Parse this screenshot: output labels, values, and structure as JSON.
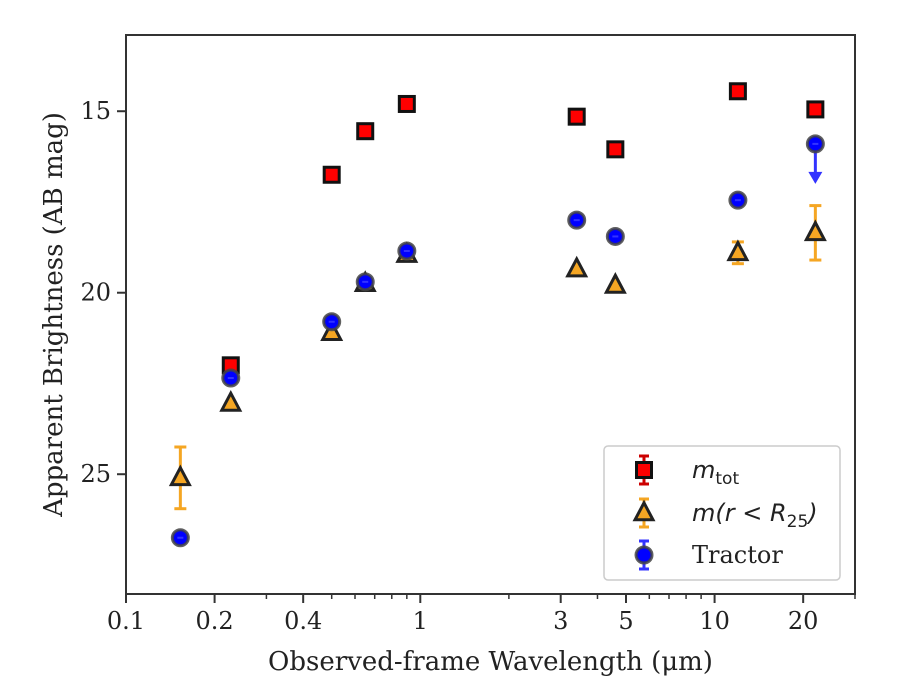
{
  "chart_data": {
    "type": "scatter",
    "title": "",
    "xlabel": "Observed-frame Wavelength (μm)",
    "ylabel": "Apparent Brightness (AB mag)",
    "xscale": "log",
    "xlim": [
      0.1,
      30
    ],
    "ylim": [
      28.3,
      12.9
    ],
    "y_inverted": true,
    "xticks": [
      0.1,
      0.2,
      0.4,
      1,
      3,
      5,
      10,
      20
    ],
    "xtick_labels": [
      "0.1",
      "0.2",
      "0.4",
      "1",
      "3",
      "5",
      "10",
      "20"
    ],
    "yticks": [
      15,
      20,
      25
    ],
    "ytick_labels": [
      "15",
      "20",
      "25"
    ],
    "legend_position": "lower-right",
    "series": [
      {
        "name": "m_tot",
        "legend_main": "m",
        "legend_sub": "tot",
        "marker": "square",
        "color": "#ff0000",
        "edge_color": "#111111",
        "errbar_color": "#cc0000",
        "x": [
          0.227,
          0.5,
          0.65,
          0.9,
          3.4,
          4.6,
          12.0,
          22.0
        ],
        "y": [
          22.0,
          16.75,
          15.55,
          14.8,
          15.15,
          16.05,
          14.45,
          14.95
        ],
        "yerr": [
          0,
          0,
          0,
          0,
          0,
          0,
          0,
          0
        ]
      },
      {
        "name": "m(r < R_25)",
        "legend_main": "m(r < R",
        "legend_sub": "25",
        "legend_end": ")",
        "marker": "triangle",
        "color": "#f5a623",
        "edge_color": "#222222",
        "errbar_color": "#f5a623",
        "x": [
          0.153,
          0.227,
          0.5,
          0.65,
          0.9,
          3.4,
          4.6,
          12.0,
          22.0
        ],
        "y": [
          25.1,
          23.05,
          21.1,
          19.75,
          18.95,
          19.35,
          19.8,
          18.9,
          18.35
        ],
        "yerr": [
          0.85,
          0,
          0,
          0,
          0,
          0,
          0,
          0.3,
          0.75
        ]
      },
      {
        "name": "Tractor",
        "legend_main": "Tractor",
        "marker": "circle",
        "color": "#0000ff",
        "edge_color": "#444444",
        "errbar_color": "#3333ff",
        "x": [
          0.153,
          0.227,
          0.5,
          0.65,
          0.9,
          3.4,
          4.6,
          12.0,
          22.0
        ],
        "y": [
          26.75,
          22.35,
          20.8,
          19.7,
          18.85,
          18.0,
          18.45,
          17.45,
          15.9
        ],
        "yerr": [
          0,
          0,
          0,
          0,
          0,
          0,
          0,
          0,
          0
        ],
        "upper_limit_index": 8
      }
    ]
  }
}
